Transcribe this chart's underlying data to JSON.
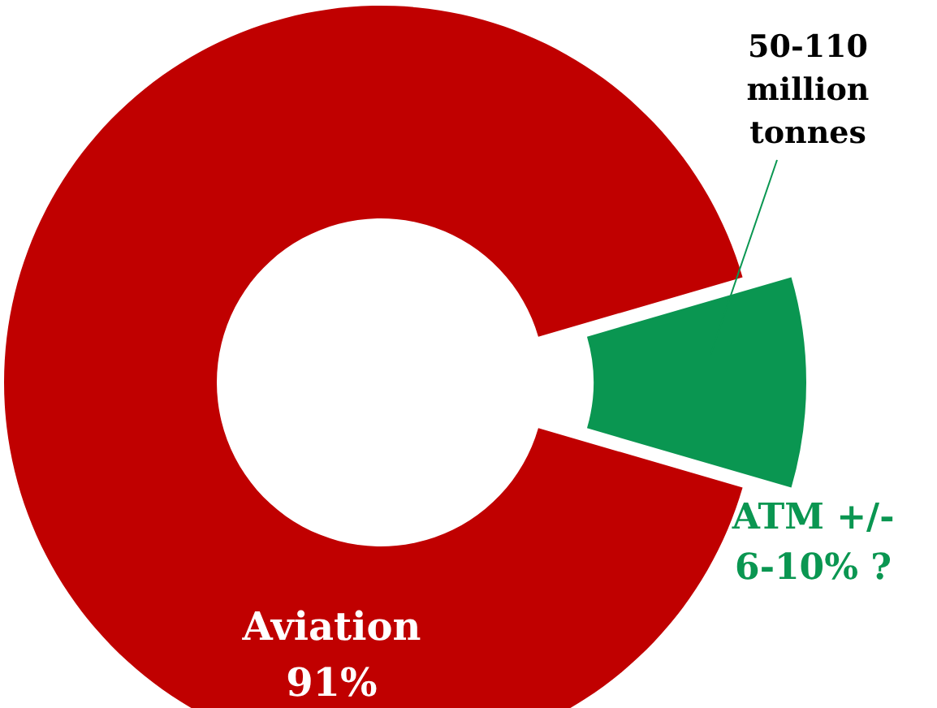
{
  "chart_data": {
    "type": "donut",
    "categories": [
      "Aviation",
      "ATM +/- 6-10% ?"
    ],
    "values": [
      91,
      9
    ],
    "colors": [
      "#c00000",
      "#0a9651"
    ],
    "value_labels": [
      "91%",
      null
    ],
    "annotations": [
      "50-110 million tonnes"
    ]
  }
}
